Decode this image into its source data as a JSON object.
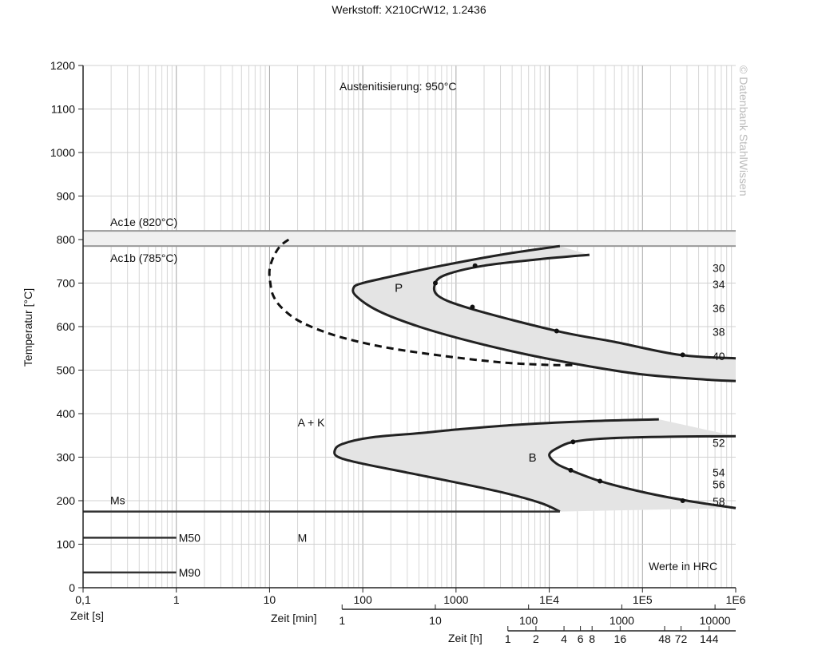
{
  "chart_data": {
    "type": "line",
    "title": "Werkstoff: X210CrW12, 1.2436",
    "austenitization": "Austenitisierung: 950°C",
    "copyright": "© Datenbank StahlWissen",
    "ylabel": "Temperatur [°C]",
    "xlabel": "Zeit [s]",
    "xlabel_min": "Zeit [min]",
    "xlabel_h": "Zeit [h]",
    "x_scale": "log",
    "xlim": [
      0.1,
      1000000
    ],
    "ylim": [
      0,
      1200
    ],
    "grid": true,
    "x_ticks": [
      {
        "v": 0.1,
        "label": "0,1"
      },
      {
        "v": 1,
        "label": "1"
      },
      {
        "v": 10,
        "label": "10"
      },
      {
        "v": 100,
        "label": "100"
      },
      {
        "v": 1000,
        "label": "1000"
      },
      {
        "v": 10000,
        "label": "1E4"
      },
      {
        "v": 100000,
        "label": "1E5"
      },
      {
        "v": 1000000,
        "label": "1E6"
      }
    ],
    "y_ticks": [
      0,
      100,
      200,
      300,
      400,
      500,
      600,
      700,
      800,
      900,
      1000,
      1100,
      1200
    ],
    "min_ticks": [
      {
        "v": 1,
        "label": "1"
      },
      {
        "v": 10,
        "label": "10"
      },
      {
        "v": 100,
        "label": "100"
      },
      {
        "v": 1000,
        "label": "1000"
      },
      {
        "v": 10000,
        "label": "10000"
      }
    ],
    "h_ticks": [
      {
        "v": 1,
        "label": "1"
      },
      {
        "v": 2,
        "label": "2"
      },
      {
        "v": 4,
        "label": "4"
      },
      {
        "v": 6,
        "label": "6"
      },
      {
        "v": 8,
        "label": "8"
      },
      {
        "v": 16,
        "label": "16"
      },
      {
        "v": 48,
        "label": "48"
      },
      {
        "v": 72,
        "label": "72"
      },
      {
        "v": 144,
        "label": "144"
      }
    ],
    "critical_temps": [
      {
        "name": "Ac1e (820°C)",
        "t": 820,
        "label_pos": "above"
      },
      {
        "name": "Ac1b (785°C)",
        "t": 785,
        "label_pos": "below"
      }
    ],
    "martensite_lines": [
      {
        "name": "Ms",
        "t": 175,
        "x_end": 13000,
        "label_pos": "above"
      },
      {
        "name": "M50",
        "t": 115,
        "x_end": 1,
        "label_pos": "right"
      },
      {
        "name": "M90",
        "t": 35,
        "x_end": 1,
        "label_pos": "right"
      }
    ],
    "perlite_region": {
      "label": "P",
      "label_at": [
        220,
        680
      ],
      "start_curve": [
        [
          13000,
          785
        ],
        [
          3000,
          765
        ],
        [
          700,
          740
        ],
        [
          200,
          715
        ],
        [
          100,
          700
        ],
        [
          80,
          690
        ],
        [
          85,
          670
        ],
        [
          150,
          635
        ],
        [
          400,
          600
        ],
        [
          1500,
          565
        ],
        [
          6000,
          535
        ],
        [
          25000,
          510
        ],
        [
          100000,
          490
        ],
        [
          500000,
          478
        ],
        [
          1000000,
          475
        ]
      ],
      "end_curve": [
        [
          27000,
          765
        ],
        [
          8000,
          755
        ],
        [
          2000,
          740
        ],
        [
          800,
          720
        ],
        [
          600,
          700
        ],
        [
          650,
          670
        ],
        [
          1500,
          640
        ],
        [
          12000,
          590
        ],
        [
          50000,
          565
        ],
        [
          250000,
          535
        ],
        [
          1000000,
          527
        ]
      ],
      "end_points": [
        [
          1600,
          740
        ],
        [
          600,
          700
        ],
        [
          1500,
          645
        ],
        [
          12000,
          590
        ],
        [
          270000,
          535
        ]
      ]
    },
    "bainite_region": {
      "label": "B",
      "label_at": [
        6000,
        290
      ],
      "start_curve": [
        [
          150000,
          387
        ],
        [
          30000,
          383
        ],
        [
          5000,
          375
        ],
        [
          1200,
          365
        ],
        [
          400,
          355
        ],
        [
          120,
          345
        ],
        [
          60,
          330
        ],
        [
          50,
          315
        ],
        [
          55,
          300
        ],
        [
          100,
          285
        ],
        [
          500,
          255
        ],
        [
          3000,
          220
        ],
        [
          8000,
          195
        ],
        [
          13000,
          175
        ]
      ],
      "end_curve": [
        [
          1000000,
          348
        ],
        [
          200000,
          347
        ],
        [
          40000,
          343
        ],
        [
          18000,
          335
        ],
        [
          12000,
          320
        ],
        [
          10000,
          305
        ],
        [
          12000,
          285
        ],
        [
          17000,
          270
        ],
        [
          35000,
          245
        ],
        [
          100000,
          220
        ],
        [
          300000,
          200
        ],
        [
          1000000,
          183
        ]
      ],
      "end_points": [
        [
          18000,
          335
        ],
        [
          17000,
          270
        ],
        [
          35000,
          245
        ],
        [
          270000,
          200
        ]
      ]
    },
    "kuehlung_dashed": {
      "curve": [
        [
          16,
          800
        ],
        [
          13,
          785
        ],
        [
          11,
          760
        ],
        [
          10,
          730
        ],
        [
          10.2,
          700
        ],
        [
          11,
          670
        ],
        [
          14,
          640
        ],
        [
          22,
          610
        ],
        [
          50,
          580
        ],
        [
          150,
          555
        ],
        [
          600,
          535
        ],
        [
          3000,
          518
        ],
        [
          10000,
          512
        ],
        [
          20000,
          512
        ]
      ]
    },
    "hardness_labels": [
      {
        "value": "30",
        "t": 735
      },
      {
        "value": "34",
        "t": 697
      },
      {
        "value": "36",
        "t": 642
      },
      {
        "value": "38",
        "t": 588
      },
      {
        "value": "40",
        "t": 532
      },
      {
        "value": "52",
        "t": 333
      },
      {
        "value": "54",
        "t": 265
      },
      {
        "value": "56",
        "t": 238
      },
      {
        "value": "58",
        "t": 198
      }
    ],
    "annotations": [
      {
        "text": "A + K",
        "x": 20,
        "t": 380
      },
      {
        "text": "M",
        "x": 20,
        "t": 115
      },
      {
        "text": "Werte in HRC",
        "x": 300000,
        "t": 50
      }
    ]
  }
}
